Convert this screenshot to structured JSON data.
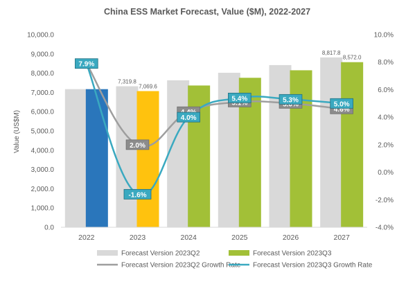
{
  "chart_data": {
    "type": "bar",
    "title": "China ESS Market Forecast, Value ($M), 2022-2027",
    "ylabel": "Value (US$M)",
    "y2label": "",
    "ylim": [
      0,
      10000
    ],
    "y2lim": [
      -4,
      10
    ],
    "yticks": [
      "0.0",
      "1,000.0",
      "2,000.0",
      "3,000.0",
      "4,000.0",
      "5,000.0",
      "6,000.0",
      "7,000.0",
      "8,000.0",
      "9,000.0",
      "10,000.0"
    ],
    "y2ticks": [
      "-4.0%",
      "-2.0%",
      "0.0%",
      "2.0%",
      "4.0%",
      "6.0%",
      "8.0%",
      "10.0%"
    ],
    "categories": [
      "2022",
      "2023",
      "2024",
      "2025",
      "2026",
      "2027"
    ],
    "bar_series": [
      {
        "name": "Forecast Version 2023Q2",
        "color": "#d9d9d9",
        "values": [
          7170,
          7319.8,
          7630,
          8020,
          8420,
          8817.8
        ],
        "labels": [
          "",
          "7,319.8",
          "",
          "",
          "",
          "8,817.8"
        ]
      },
      {
        "name": "Forecast Version 2023Q3",
        "color": "#a2c037",
        "values": [
          7170,
          7069.6,
          7360,
          7760,
          8150,
          8572.0
        ],
        "labels": [
          "",
          "7,069.6",
          "",
          "",
          "",
          "8,572.0"
        ],
        "point_colors": [
          "#2a76bb",
          "#ffc20e",
          "#a2c037",
          "#a2c037",
          "#a2c037",
          "#a2c037"
        ]
      }
    ],
    "line_series": [
      {
        "name": "Forecast Version 2023Q2 Growth Rate",
        "color": "#9e9e9e",
        "label_bg": "#8c8c8c",
        "values": [
          7.9,
          2.0,
          4.4,
          5.1,
          5.0,
          4.6
        ],
        "labels": [
          "",
          "2.0%",
          "4.4%",
          "5.1%",
          "5.0%",
          "4.6%"
        ]
      },
      {
        "name": "Forecast Version 2023Q3 Growth Rate",
        "color": "#3aa9c0",
        "label_bg": "#3aa9c0",
        "values": [
          7.9,
          -1.6,
          4.0,
          5.4,
          5.3,
          5.0
        ],
        "labels": [
          "7.9%",
          "-1.6%",
          "4.0%",
          "5.4%",
          "5.3%",
          "5.0%"
        ]
      }
    ],
    "legend_position": "bottom",
    "grid": false
  }
}
